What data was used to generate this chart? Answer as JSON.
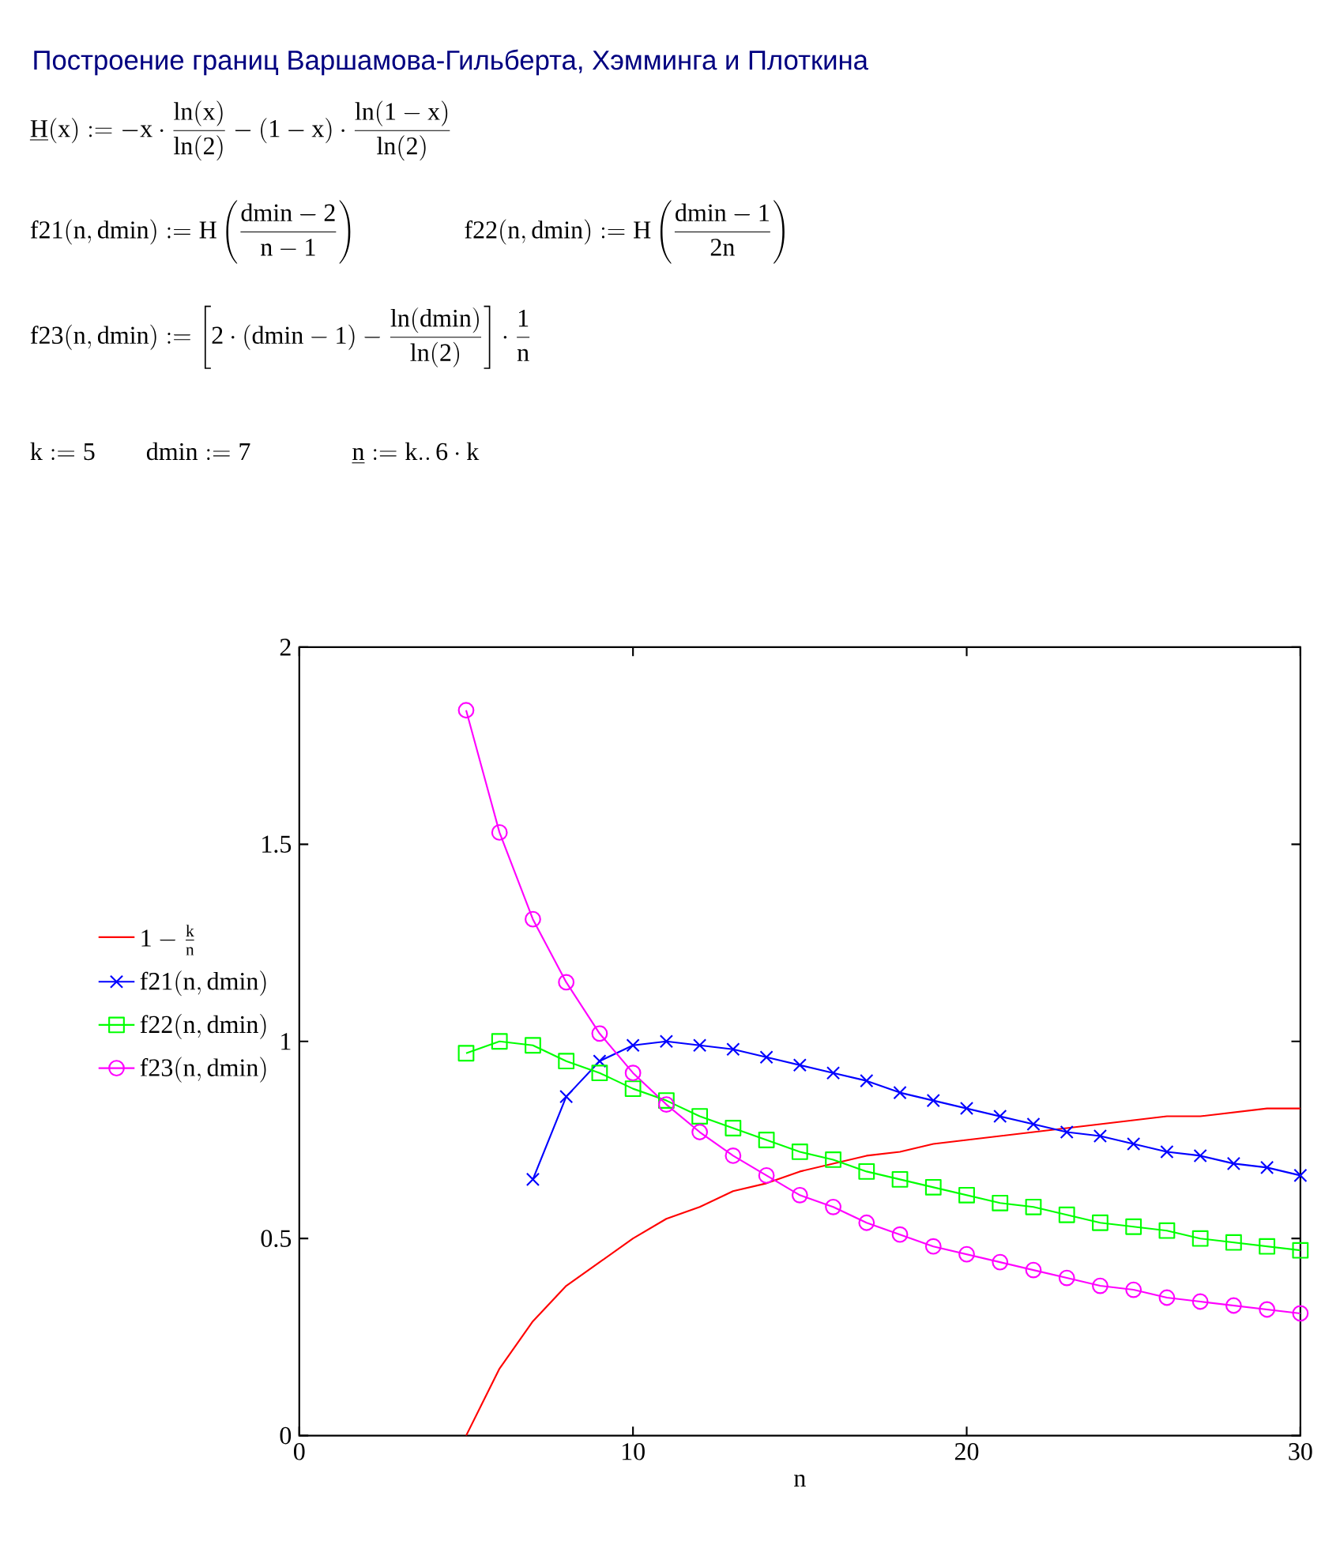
{
  "chart_data": {
    "type": "line",
    "title": "Построение границ Варшамова-Гильберта, Хэмминга и Плоткина",
    "annotations": [
      "\\mathrm{\\underline{H}(x) := -x\\cdot\\frac{ln(x)}{ln(2)} - (1-x)\\cdot\\frac{ln(1-x)}{ln(2)}}",
      "\\mathrm{f21(n,dmin) := H\\left(\\frac{dmin-2}{n-1}\\right)}",
      "\\mathrm{f22(n,dmin) := H\\left(\\frac{dmin-1}{2n}\\right)}",
      "\\mathrm{f23(n,dmin) := \\left[2\\cdot(dmin-1) - \\frac{ln(dmin)}{ln(2)}\\right]\\cdot\\frac{1}{n}}",
      "\\mathrm{k := 5 \\qquad dmin := 7 \\qquad\\qquad \\underline{n} := k..\\,6\\cdot k}"
    ],
    "xlabel": "n",
    "x": [
      5,
      6,
      7,
      8,
      9,
      10,
      11,
      12,
      13,
      14,
      15,
      16,
      17,
      18,
      19,
      20,
      21,
      22,
      23,
      24,
      25,
      26,
      27,
      28,
      29,
      30
    ],
    "xlim": [
      0,
      30
    ],
    "xticks": [
      0,
      10,
      20,
      30
    ],
    "ylim": [
      0,
      2
    ],
    "yticks": [
      0,
      0.5,
      1,
      1.5,
      2
    ],
    "legend": "left",
    "series": [
      {
        "name": "\\mathrm{1-\\frac{k}{n}}",
        "color": "#ff0000",
        "marker": "none",
        "values": [
          0,
          0.17,
          0.29,
          0.38,
          0.44,
          0.5,
          0.55,
          0.58,
          0.62,
          0.64,
          0.67,
          0.69,
          0.71,
          0.72,
          0.74,
          0.75,
          0.76,
          0.77,
          0.78,
          0.79,
          0.8,
          0.81,
          0.81,
          0.82,
          0.83,
          0.83
        ]
      },
      {
        "name": "\\mathrm{f21(n,dmin)}",
        "color": "#0000ff",
        "marker": "cross",
        "values": [
          null,
          null,
          0.65,
          0.86,
          0.95,
          0.99,
          1,
          0.99,
          0.98,
          0.96,
          0.94,
          0.92,
          0.9,
          0.87,
          0.85,
          0.83,
          0.81,
          0.79,
          0.77,
          0.76,
          0.74,
          0.72,
          0.71,
          0.69,
          0.68,
          0.66
        ]
      },
      {
        "name": "\\mathrm{f22(n,dmin)}",
        "color": "#00ff00",
        "marker": "square",
        "values": [
          0.97,
          1,
          0.99,
          0.95,
          0.92,
          0.88,
          0.85,
          0.81,
          0.78,
          0.75,
          0.72,
          0.7,
          0.67,
          0.65,
          0.63,
          0.61,
          0.59,
          0.58,
          0.56,
          0.54,
          0.53,
          0.52,
          0.5,
          0.49,
          0.48,
          0.47
        ]
      },
      {
        "name": "\\mathrm{f23(n,dmin)}",
        "color": "#ff00ff",
        "marker": "circle",
        "values": [
          1.84,
          1.53,
          1.31,
          1.15,
          1.02,
          0.92,
          0.84,
          0.77,
          0.71,
          0.66,
          0.61,
          0.58,
          0.54,
          0.51,
          0.48,
          0.46,
          0.44,
          0.42,
          0.4,
          0.38,
          0.37,
          0.35,
          0.34,
          0.33,
          0.32,
          0.31
        ]
      }
    ]
  }
}
